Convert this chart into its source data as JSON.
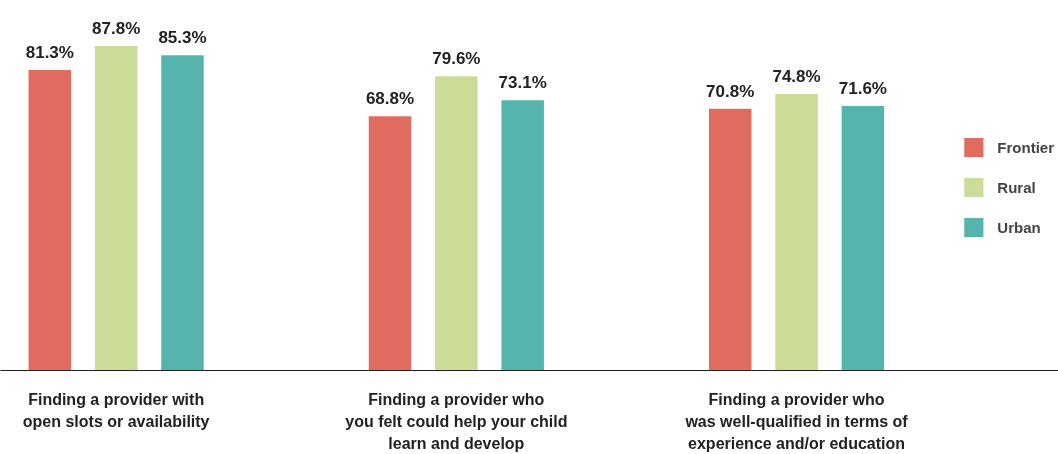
{
  "chart_data": {
    "type": "bar",
    "categories": [
      "Finding a provider with\nopen slots or availability",
      "Finding a provider who\nyou felt could help your child\nlearn and develop",
      "Finding a provider who\nwas well-qualified in terms of\nexperience and/or education"
    ],
    "series": [
      {
        "name": "Frontier",
        "color": "#e06c60",
        "values": [
          81.3,
          68.8,
          70.8
        ],
        "value_labels": [
          "81.3%",
          "68.8%",
          "70.8%"
        ]
      },
      {
        "name": "Rural",
        "color": "#cbdb98",
        "values": [
          87.8,
          79.6,
          74.8
        ],
        "value_labels": [
          "87.8%",
          "79.6%",
          "74.8%"
        ]
      },
      {
        "name": "Urban",
        "color": "#55b5ad",
        "values": [
          85.3,
          73.1,
          71.6
        ],
        "value_labels": [
          "85.3%",
          "73.1%",
          "71.6%"
        ]
      }
    ],
    "tick_labels": "x",
    "legend": "right"
  }
}
